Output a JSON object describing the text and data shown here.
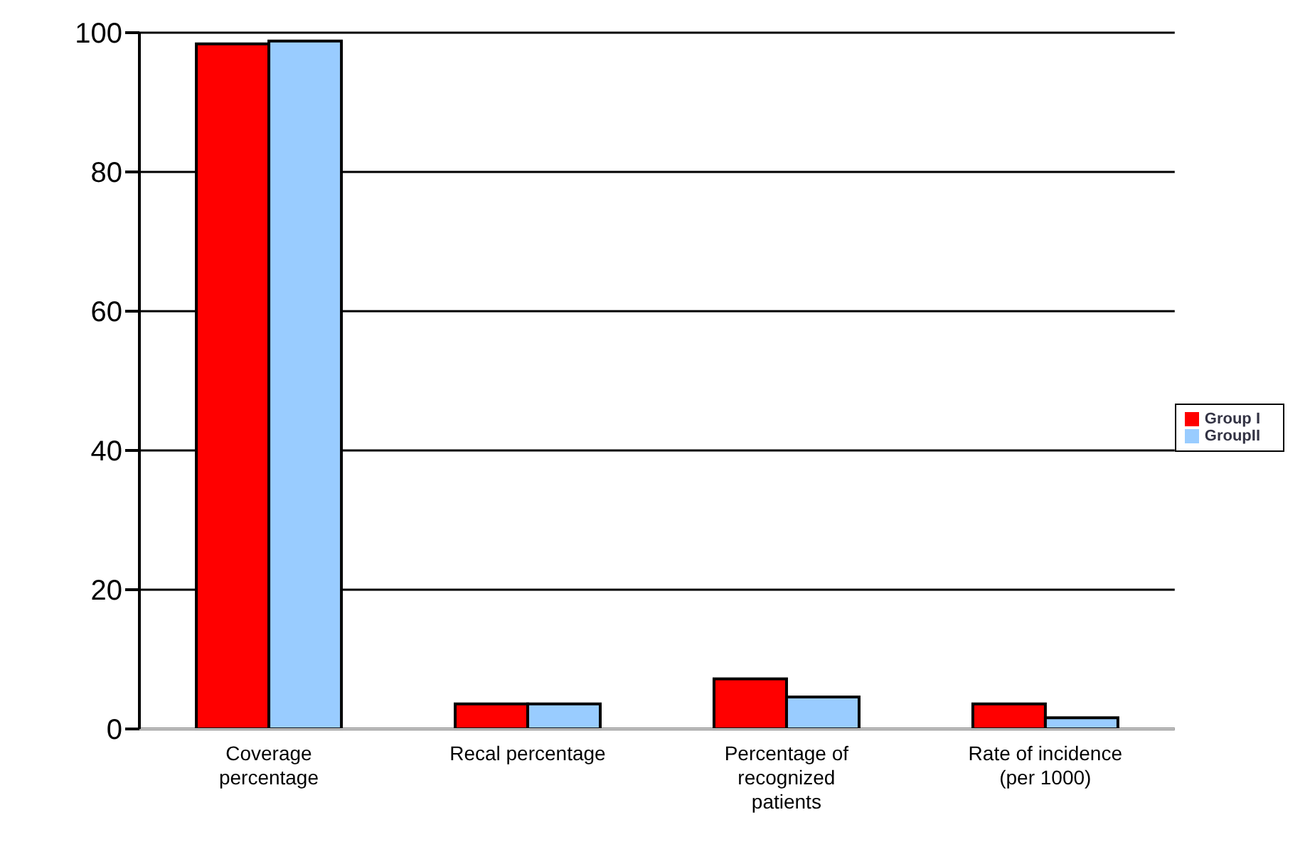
{
  "chart_data": {
    "type": "bar",
    "categories": [
      "Coverage percentage",
      "Recal percentage",
      "Percentage of recognized patients",
      "Rate of incidence (per 1000)"
    ],
    "series": [
      {
        "name": "Group I",
        "color": "#ff0000",
        "values": [
          98.4,
          3.6,
          7.2,
          3.6
        ]
      },
      {
        "name": "GroupII",
        "color": "#99ccff",
        "values": [
          98.8,
          3.6,
          4.6,
          1.6
        ]
      }
    ],
    "ylim": [
      0,
      100
    ],
    "yticks": [
      0,
      20,
      40,
      60,
      80,
      100
    ],
    "grid": "y",
    "legend": "right"
  }
}
